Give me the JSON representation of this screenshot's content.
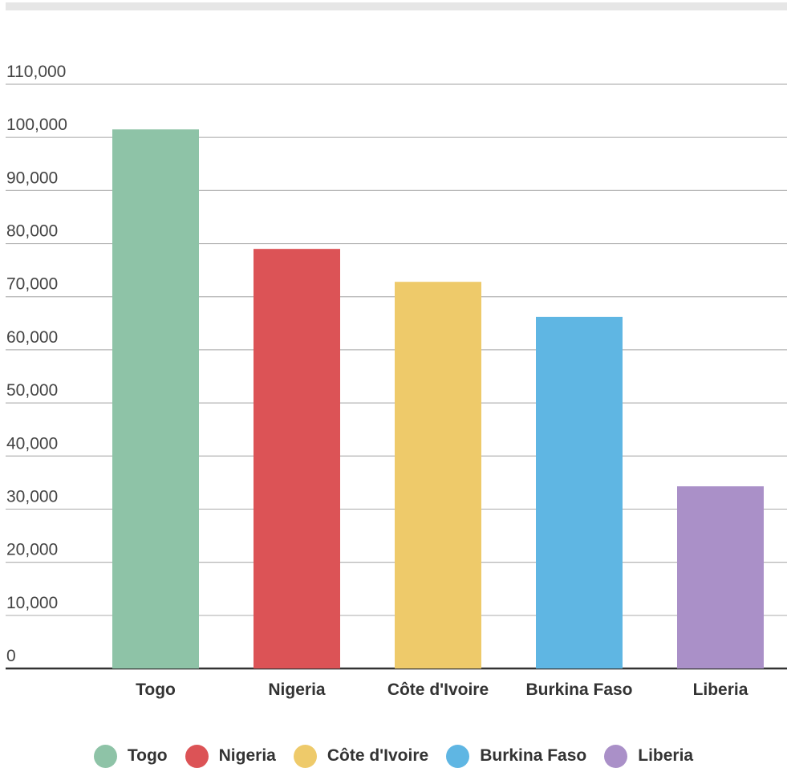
{
  "chart_data": {
    "type": "bar",
    "categories": [
      "Togo",
      "Nigeria",
      "Côte d'Ivoire",
      "Burkina Faso",
      "Liberia"
    ],
    "values": [
      101500,
      79000,
      72800,
      66200,
      34300
    ],
    "colors": [
      "#8ec3a7",
      "#dc5356",
      "#eeca6a",
      "#5fb6e3",
      "#aa90c8"
    ],
    "ylim": [
      0,
      110000
    ],
    "yticks": [
      0,
      10000,
      20000,
      30000,
      40000,
      50000,
      60000,
      70000,
      80000,
      90000,
      100000,
      110000
    ],
    "ytick_labels": [
      "0",
      "10,000",
      "20,000",
      "30,000",
      "40,000",
      "50,000",
      "60,000",
      "70,000",
      "80,000",
      "90,000",
      "100,000",
      "110,000"
    ],
    "title": "",
    "xlabel": "",
    "ylabel": "",
    "grid": true,
    "legend_position": "bottom"
  },
  "legend": {
    "items": [
      {
        "label": "Togo",
        "color": "#8ec3a7"
      },
      {
        "label": "Nigeria",
        "color": "#dc5356"
      },
      {
        "label": "Côte d'Ivoire",
        "color": "#eeca6a"
      },
      {
        "label": "Burkina Faso",
        "color": "#5fb6e3"
      },
      {
        "label": "Liberia",
        "color": "#aa90c8"
      }
    ]
  }
}
